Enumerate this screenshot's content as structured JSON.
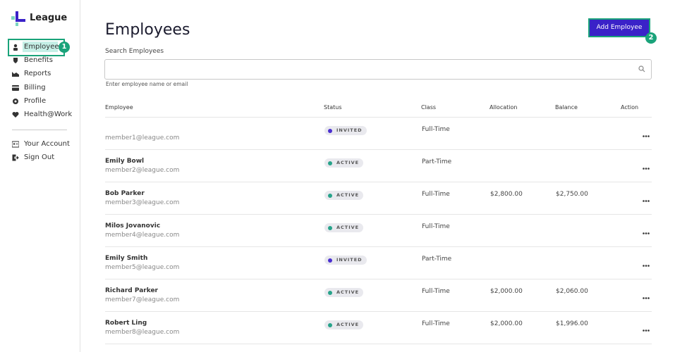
{
  "sidebar": {
    "logo": "League",
    "nav": [
      "Employees",
      "Benefits",
      "Reports",
      "Billing",
      "Profile",
      "Health@Work"
    ],
    "account": [
      "Your Account",
      "Sign Out"
    ]
  },
  "markers": [
    "1",
    "2"
  ],
  "header": {
    "title": "Employees",
    "button": "Add Employee"
  },
  "search": {
    "label": "Search Employees",
    "hint": "Enter employee name or email"
  },
  "table": {
    "columns": [
      "Employee",
      "Status",
      "Class",
      "Allocation",
      "Balance",
      "Action"
    ],
    "rows": [
      {
        "email": "member1@league.com",
        "status": "INVITED",
        "class": "Full-Time"
      },
      {
        "name": "Emily Bowl",
        "email": "member2@league.com",
        "status": "ACTIVE",
        "class": "Part-Time"
      },
      {
        "name": "Bob Parker",
        "email": "member3@league.com",
        "status": "ACTIVE",
        "class": "Full-Time",
        "allocation": "$2,800.00",
        "balance": "$2,750.00"
      },
      {
        "name": "Milos Jovanovic",
        "email": "member4@league.com",
        "status": "ACTIVE",
        "class": "Full-Time"
      },
      {
        "name": "Emily Smith",
        "email": "member5@league.com",
        "status": "INVITED",
        "class": "Part-Time"
      },
      {
        "name": "Richard Parker",
        "email": "member7@league.com",
        "status": "ACTIVE",
        "class": "Full-Time",
        "allocation": "$2,000.00",
        "balance": "$2,060.00"
      },
      {
        "name": "Robert Ling",
        "email": "member8@league.com",
        "status": "ACTIVE",
        "class": "Full-Time",
        "allocation": "$2,000.00",
        "balance": "$1,996.00"
      }
    ]
  }
}
